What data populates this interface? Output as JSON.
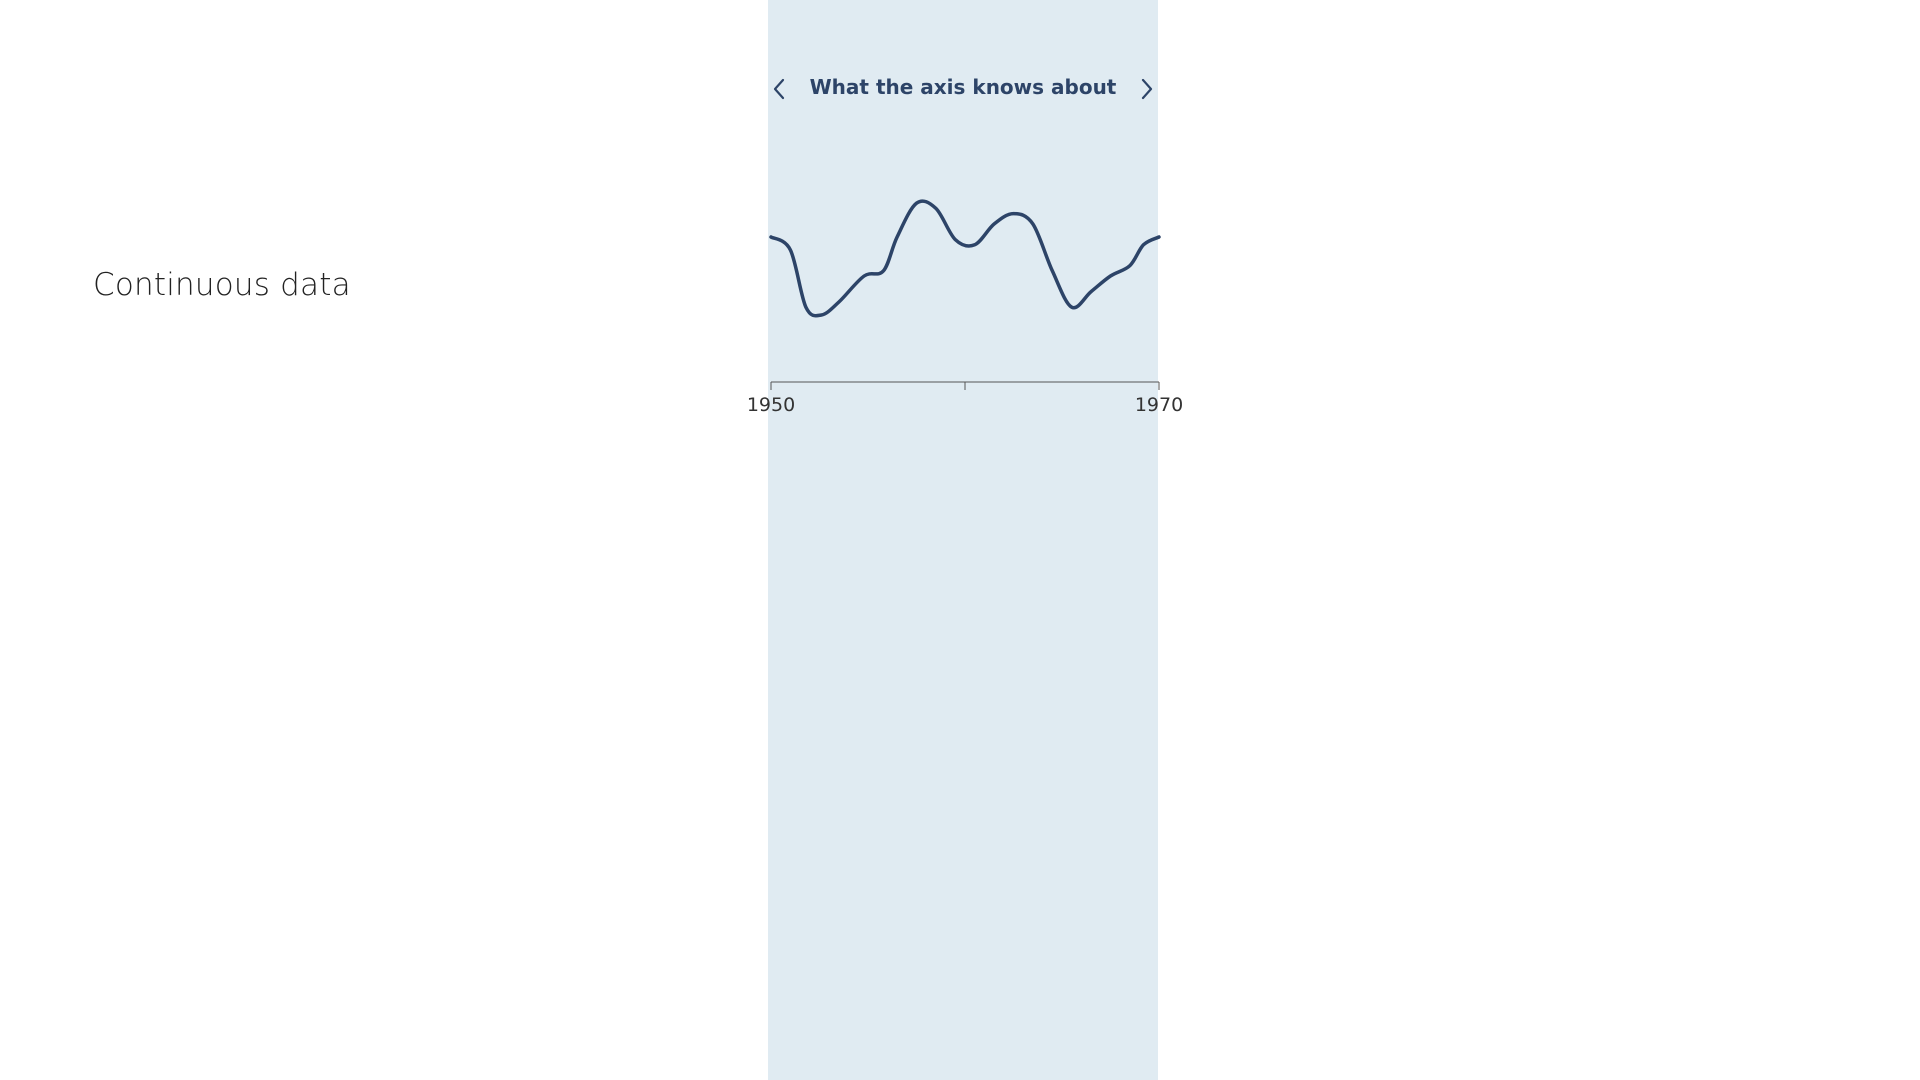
{
  "section": {
    "label": "Continuous data"
  },
  "panel": {
    "title": "What the axis knows about",
    "prev_icon": "chevron-left-icon",
    "next_icon": "chevron-right-icon",
    "background": "#e0ebf2"
  },
  "chart_data": {
    "type": "line",
    "title": "What the axis knows about",
    "xlabel": "",
    "ylabel": "",
    "xlim": [
      1950,
      1970
    ],
    "x_ticks": [
      1950,
      1960,
      1970
    ],
    "x_tick_labels": [
      "1950",
      "",
      "1970"
    ],
    "grid": false,
    "line_color": "#2d4468",
    "series": [
      {
        "x": [
          1950,
          1951,
          1951.8,
          1952.6,
          1953.5,
          1954.8,
          1955.8,
          1956.5,
          1957.5,
          1958.5,
          1959.5,
          1960.5,
          1961.5,
          1962.5,
          1963.5,
          1964.5,
          1965.5,
          1966.5,
          1967.5,
          1968.5,
          1969.2,
          1970
        ],
        "y": [
          55,
          50,
          28,
          25,
          30,
          40,
          42,
          55,
          68,
          66,
          54,
          52,
          60,
          64,
          60,
          42,
          28,
          34,
          40,
          44,
          52,
          55
        ]
      }
    ]
  }
}
